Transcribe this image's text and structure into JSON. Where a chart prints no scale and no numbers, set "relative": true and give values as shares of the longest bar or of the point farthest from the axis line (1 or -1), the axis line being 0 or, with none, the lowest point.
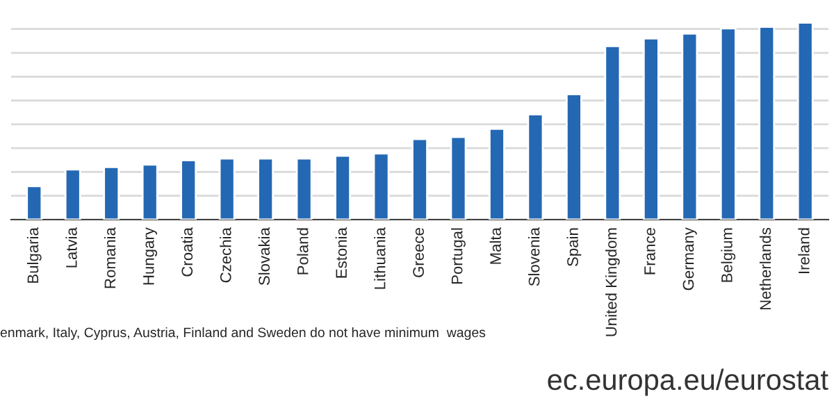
{
  "chart_data": {
    "type": "bar",
    "relative": true,
    "grid": "y",
    "color": "#2468b4",
    "categories": [
      "Bulgaria",
      "Latvia",
      "Romania",
      "Hungary",
      "Croatia",
      "Czechia",
      "Slovakia",
      "Poland",
      "Estonia",
      "Lithuania",
      "Greece",
      "Portugal",
      "Malta",
      "Slovenia",
      "Spain",
      "United Kingdom",
      "France",
      "Germany",
      "Belgium",
      "Netherlands",
      "Ireland"
    ],
    "values": [
      0.17,
      0.255,
      0.267,
      0.279,
      0.301,
      0.31,
      0.31,
      0.31,
      0.324,
      0.336,
      0.409,
      0.42,
      0.461,
      0.534,
      0.637,
      0.881,
      0.92,
      0.945,
      0.971,
      0.979,
      1
    ],
    "annotations": [
      "enmark, Italy, Cyprus, Austria, Finland and Sweden do not have minimum  wages",
      "ec.europa.eu/eurostat"
    ]
  }
}
